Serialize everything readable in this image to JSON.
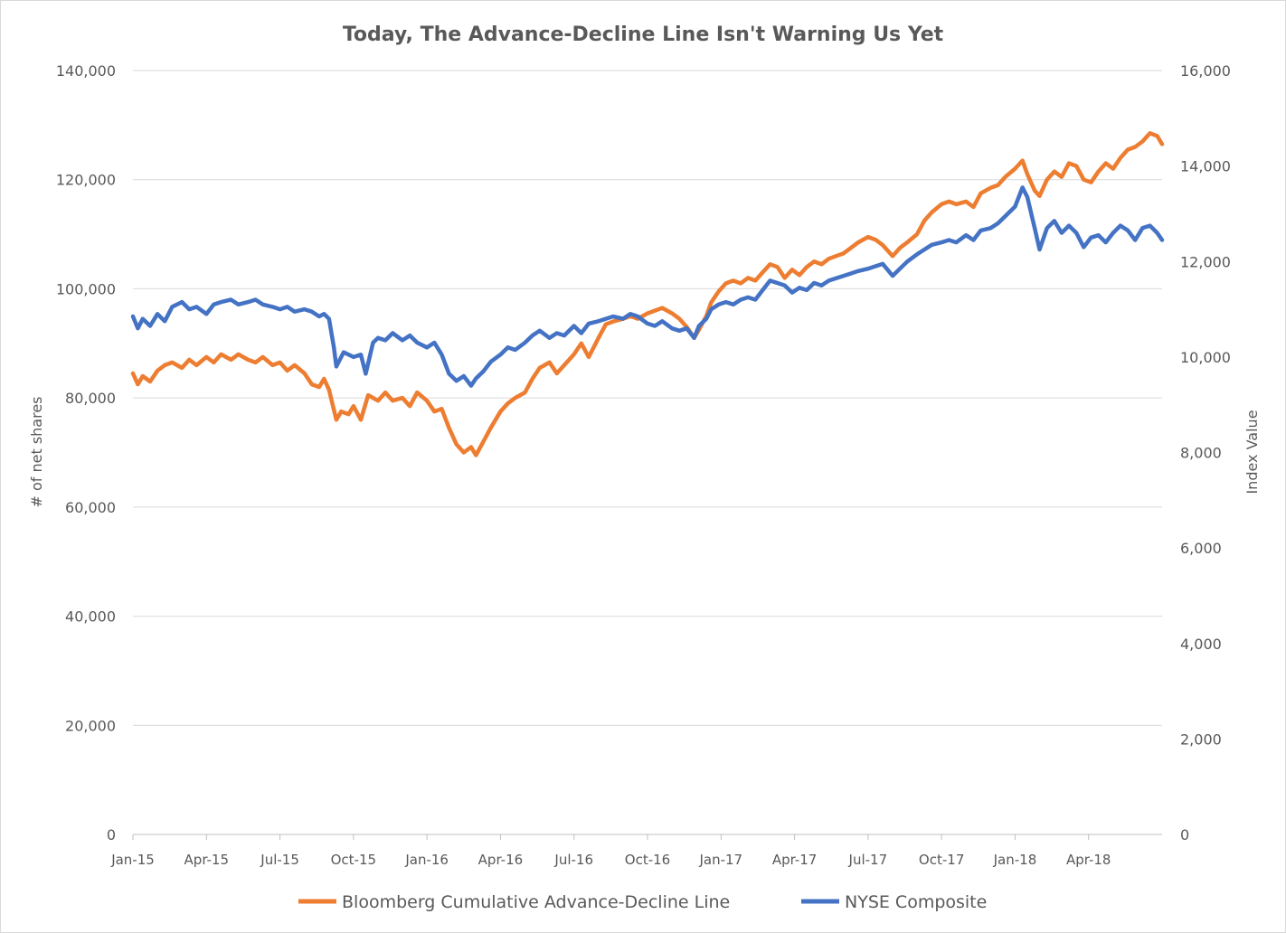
{
  "chart_data": {
    "type": "line",
    "title": "Today, The Advance-Decline Line Isn't Warning Us Yet",
    "ylabel": "# of net shares",
    "y2label": "Index Value",
    "ylim": [
      0,
      140000
    ],
    "y2lim": [
      0,
      16000
    ],
    "yticks": [
      "0",
      "20,000",
      "40,000",
      "60,000",
      "80,000",
      "100,000",
      "120,000",
      "140,000"
    ],
    "y2ticks": [
      "0",
      "2,000",
      "4,000",
      "6,000",
      "8,000",
      "10,000",
      "12,000",
      "14,000",
      "16,000"
    ],
    "xticks": [
      "Jan-15",
      "Apr-15",
      "Jul-15",
      "Oct-15",
      "Jan-16",
      "Apr-16",
      "Jul-16",
      "Oct-16",
      "Jan-17",
      "Apr-17",
      "Jul-17",
      "Oct-17",
      "Jan-18",
      "Apr-18"
    ],
    "grid": true,
    "legend_position": "bottom",
    "x_unit": "months since Jan-15",
    "series": [
      {
        "name": "Bloomberg Cumulative Advance-Decline Line",
        "axis": "left",
        "color": "#ED7D31",
        "points": [
          [
            0.0,
            84500
          ],
          [
            0.2,
            82500
          ],
          [
            0.4,
            84000
          ],
          [
            0.7,
            83000
          ],
          [
            1.0,
            85000
          ],
          [
            1.3,
            86000
          ],
          [
            1.6,
            86500
          ],
          [
            2.0,
            85500
          ],
          [
            2.3,
            87000
          ],
          [
            2.6,
            86000
          ],
          [
            3.0,
            87500
          ],
          [
            3.3,
            86500
          ],
          [
            3.6,
            88000
          ],
          [
            4.0,
            87000
          ],
          [
            4.3,
            88000
          ],
          [
            4.7,
            87000
          ],
          [
            5.0,
            86500
          ],
          [
            5.3,
            87500
          ],
          [
            5.7,
            86000
          ],
          [
            6.0,
            86500
          ],
          [
            6.3,
            85000
          ],
          [
            6.6,
            86000
          ],
          [
            7.0,
            84500
          ],
          [
            7.3,
            82500
          ],
          [
            7.6,
            82000
          ],
          [
            7.8,
            83500
          ],
          [
            8.0,
            81500
          ],
          [
            8.3,
            76000
          ],
          [
            8.5,
            77500
          ],
          [
            8.8,
            77000
          ],
          [
            9.0,
            78500
          ],
          [
            9.3,
            76000
          ],
          [
            9.6,
            80500
          ],
          [
            10.0,
            79500
          ],
          [
            10.3,
            81000
          ],
          [
            10.6,
            79500
          ],
          [
            11.0,
            80000
          ],
          [
            11.3,
            78500
          ],
          [
            11.6,
            81000
          ],
          [
            12.0,
            79500
          ],
          [
            12.3,
            77500
          ],
          [
            12.6,
            78000
          ],
          [
            12.9,
            74500
          ],
          [
            13.2,
            71500
          ],
          [
            13.5,
            70000
          ],
          [
            13.8,
            71000
          ],
          [
            14.0,
            69500
          ],
          [
            14.3,
            72000
          ],
          [
            14.6,
            74500
          ],
          [
            15.0,
            77500
          ],
          [
            15.3,
            79000
          ],
          [
            15.6,
            80000
          ],
          [
            16.0,
            81000
          ],
          [
            16.3,
            83500
          ],
          [
            16.6,
            85500
          ],
          [
            17.0,
            86500
          ],
          [
            17.3,
            84500
          ],
          [
            17.6,
            86000
          ],
          [
            18.0,
            88000
          ],
          [
            18.3,
            90000
          ],
          [
            18.6,
            87500
          ],
          [
            19.0,
            91000
          ],
          [
            19.3,
            93500
          ],
          [
            19.6,
            94000
          ],
          [
            20.0,
            94500
          ],
          [
            20.3,
            95000
          ],
          [
            20.6,
            94500
          ],
          [
            21.0,
            95500
          ],
          [
            21.3,
            96000
          ],
          [
            21.6,
            96500
          ],
          [
            22.0,
            95500
          ],
          [
            22.3,
            94500
          ],
          [
            22.6,
            93000
          ],
          [
            22.9,
            91000
          ],
          [
            23.1,
            92500
          ],
          [
            23.4,
            95000
          ],
          [
            23.6,
            97500
          ],
          [
            23.9,
            99500
          ],
          [
            24.2,
            101000
          ],
          [
            24.5,
            101500
          ],
          [
            24.8,
            101000
          ],
          [
            25.1,
            102000
          ],
          [
            25.4,
            101500
          ],
          [
            25.7,
            103000
          ],
          [
            26.0,
            104500
          ],
          [
            26.3,
            104000
          ],
          [
            26.6,
            102000
          ],
          [
            26.9,
            103500
          ],
          [
            27.2,
            102500
          ],
          [
            27.5,
            104000
          ],
          [
            27.8,
            105000
          ],
          [
            28.1,
            104500
          ],
          [
            28.4,
            105500
          ],
          [
            28.7,
            106000
          ],
          [
            29.0,
            106500
          ],
          [
            29.3,
            107500
          ],
          [
            29.6,
            108500
          ],
          [
            30.0,
            109500
          ],
          [
            30.3,
            109000
          ],
          [
            30.6,
            108000
          ],
          [
            31.0,
            106000
          ],
          [
            31.3,
            107500
          ],
          [
            31.6,
            108500
          ],
          [
            32.0,
            110000
          ],
          [
            32.3,
            112500
          ],
          [
            32.6,
            114000
          ],
          [
            33.0,
            115500
          ],
          [
            33.3,
            116000
          ],
          [
            33.6,
            115500
          ],
          [
            34.0,
            116000
          ],
          [
            34.3,
            115000
          ],
          [
            34.6,
            117500
          ],
          [
            35.0,
            118500
          ],
          [
            35.3,
            119000
          ],
          [
            35.6,
            120500
          ],
          [
            36.0,
            122000
          ],
          [
            36.3,
            123500
          ],
          [
            36.5,
            121000
          ],
          [
            36.8,
            118000
          ],
          [
            37.0,
            117000
          ],
          [
            37.3,
            120000
          ],
          [
            37.6,
            121500
          ],
          [
            37.9,
            120500
          ],
          [
            38.2,
            123000
          ],
          [
            38.5,
            122500
          ],
          [
            38.8,
            120000
          ],
          [
            39.1,
            119500
          ],
          [
            39.4,
            121500
          ],
          [
            39.7,
            123000
          ],
          [
            40.0,
            122000
          ],
          [
            40.3,
            124000
          ],
          [
            40.6,
            125500
          ],
          [
            40.9,
            126000
          ],
          [
            41.2,
            127000
          ],
          [
            41.5,
            128500
          ],
          [
            41.8,
            128000
          ],
          [
            42.0,
            126500
          ]
        ]
      },
      {
        "name": "NYSE Composite",
        "axis": "right",
        "color": "#4472C4",
        "points": [
          [
            0.0,
            10850
          ],
          [
            0.2,
            10600
          ],
          [
            0.4,
            10800
          ],
          [
            0.7,
            10650
          ],
          [
            1.0,
            10900
          ],
          [
            1.3,
            10750
          ],
          [
            1.6,
            11050
          ],
          [
            2.0,
            11150
          ],
          [
            2.3,
            11000
          ],
          [
            2.6,
            11050
          ],
          [
            3.0,
            10900
          ],
          [
            3.3,
            11100
          ],
          [
            3.6,
            11150
          ],
          [
            4.0,
            11200
          ],
          [
            4.3,
            11100
          ],
          [
            4.7,
            11150
          ],
          [
            5.0,
            11200
          ],
          [
            5.3,
            11100
          ],
          [
            5.7,
            11050
          ],
          [
            6.0,
            11000
          ],
          [
            6.3,
            11050
          ],
          [
            6.6,
            10950
          ],
          [
            7.0,
            11000
          ],
          [
            7.3,
            10950
          ],
          [
            7.6,
            10850
          ],
          [
            7.8,
            10900
          ],
          [
            8.0,
            10800
          ],
          [
            8.2,
            10200
          ],
          [
            8.3,
            9800
          ],
          [
            8.6,
            10100
          ],
          [
            9.0,
            10000
          ],
          [
            9.3,
            10050
          ],
          [
            9.5,
            9650
          ],
          [
            9.8,
            10300
          ],
          [
            10.0,
            10400
          ],
          [
            10.3,
            10350
          ],
          [
            10.6,
            10500
          ],
          [
            11.0,
            10350
          ],
          [
            11.3,
            10450
          ],
          [
            11.6,
            10300
          ],
          [
            12.0,
            10200
          ],
          [
            12.3,
            10300
          ],
          [
            12.6,
            10050
          ],
          [
            12.9,
            9650
          ],
          [
            13.2,
            9500
          ],
          [
            13.5,
            9600
          ],
          [
            13.8,
            9400
          ],
          [
            14.0,
            9550
          ],
          [
            14.3,
            9700
          ],
          [
            14.6,
            9900
          ],
          [
            15.0,
            10050
          ],
          [
            15.3,
            10200
          ],
          [
            15.6,
            10150
          ],
          [
            16.0,
            10300
          ],
          [
            16.3,
            10450
          ],
          [
            16.6,
            10550
          ],
          [
            17.0,
            10400
          ],
          [
            17.3,
            10500
          ],
          [
            17.6,
            10450
          ],
          [
            18.0,
            10650
          ],
          [
            18.3,
            10500
          ],
          [
            18.6,
            10700
          ],
          [
            19.0,
            10750
          ],
          [
            19.3,
            10800
          ],
          [
            19.6,
            10850
          ],
          [
            20.0,
            10800
          ],
          [
            20.3,
            10900
          ],
          [
            20.6,
            10850
          ],
          [
            21.0,
            10700
          ],
          [
            21.3,
            10650
          ],
          [
            21.6,
            10750
          ],
          [
            22.0,
            10600
          ],
          [
            22.3,
            10550
          ],
          [
            22.6,
            10600
          ],
          [
            22.9,
            10400
          ],
          [
            23.1,
            10650
          ],
          [
            23.4,
            10800
          ],
          [
            23.6,
            11000
          ],
          [
            23.9,
            11100
          ],
          [
            24.2,
            11150
          ],
          [
            24.5,
            11100
          ],
          [
            24.8,
            11200
          ],
          [
            25.1,
            11250
          ],
          [
            25.4,
            11200
          ],
          [
            25.7,
            11400
          ],
          [
            26.0,
            11600
          ],
          [
            26.3,
            11550
          ],
          [
            26.6,
            11500
          ],
          [
            26.9,
            11350
          ],
          [
            27.2,
            11450
          ],
          [
            27.5,
            11400
          ],
          [
            27.8,
            11550
          ],
          [
            28.1,
            11500
          ],
          [
            28.4,
            11600
          ],
          [
            28.7,
            11650
          ],
          [
            29.0,
            11700
          ],
          [
            29.3,
            11750
          ],
          [
            29.6,
            11800
          ],
          [
            30.0,
            11850
          ],
          [
            30.3,
            11900
          ],
          [
            30.6,
            11950
          ],
          [
            31.0,
            11700
          ],
          [
            31.3,
            11850
          ],
          [
            31.6,
            12000
          ],
          [
            32.0,
            12150
          ],
          [
            32.3,
            12250
          ],
          [
            32.6,
            12350
          ],
          [
            33.0,
            12400
          ],
          [
            33.3,
            12450
          ],
          [
            33.6,
            12400
          ],
          [
            34.0,
            12550
          ],
          [
            34.3,
            12450
          ],
          [
            34.6,
            12650
          ],
          [
            35.0,
            12700
          ],
          [
            35.3,
            12800
          ],
          [
            35.6,
            12950
          ],
          [
            36.0,
            13150
          ],
          [
            36.3,
            13550
          ],
          [
            36.5,
            13350
          ],
          [
            36.8,
            12700
          ],
          [
            37.0,
            12250
          ],
          [
            37.3,
            12700
          ],
          [
            37.6,
            12850
          ],
          [
            37.9,
            12600
          ],
          [
            38.2,
            12750
          ],
          [
            38.5,
            12600
          ],
          [
            38.8,
            12300
          ],
          [
            39.1,
            12500
          ],
          [
            39.4,
            12550
          ],
          [
            39.7,
            12400
          ],
          [
            40.0,
            12600
          ],
          [
            40.3,
            12750
          ],
          [
            40.6,
            12650
          ],
          [
            40.9,
            12450
          ],
          [
            41.2,
            12700
          ],
          [
            41.5,
            12750
          ],
          [
            41.8,
            12600
          ],
          [
            42.0,
            12450
          ]
        ]
      }
    ]
  }
}
